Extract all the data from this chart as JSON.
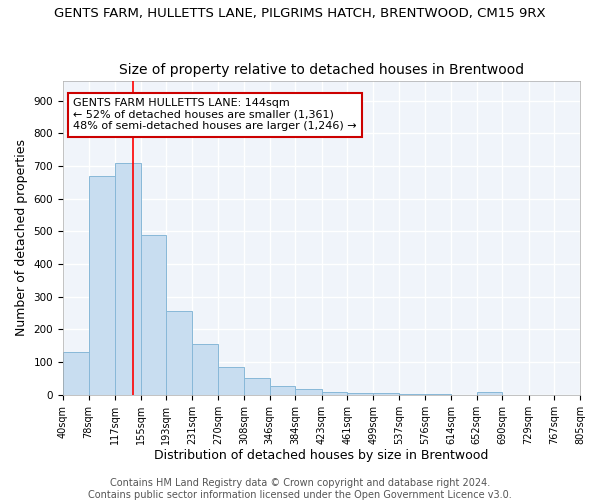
{
  "title1": "GENTS FARM, HULLETTS LANE, PILGRIMS HATCH, BRENTWOOD, CM15 9RX",
  "title2": "Size of property relative to detached houses in Brentwood",
  "xlabel": "Distribution of detached houses by size in Brentwood",
  "ylabel": "Number of detached properties",
  "bin_edges": [
    40,
    78,
    117,
    155,
    193,
    231,
    270,
    308,
    346,
    384,
    423,
    461,
    499,
    537,
    576,
    614,
    652,
    690,
    729,
    767,
    805
  ],
  "bar_heights": [
    130,
    670,
    710,
    490,
    255,
    155,
    85,
    50,
    28,
    18,
    10,
    7,
    5,
    3,
    2,
    1,
    8,
    1,
    0,
    0
  ],
  "bar_color": "#c8ddf0",
  "bar_edge_color": "#88b8d8",
  "red_line_x": 144,
  "annotation_line1": "GENTS FARM HULLETTS LANE: 144sqm",
  "annotation_line2": "← 52% of detached houses are smaller (1,361)",
  "annotation_line3": "48% of semi-detached houses are larger (1,246) →",
  "annotation_box_color": "#ffffff",
  "annotation_box_edge_color": "#cc0000",
  "footer1": "Contains HM Land Registry data © Crown copyright and database right 2024.",
  "footer2": "Contains public sector information licensed under the Open Government Licence v3.0.",
  "ylim": [
    0,
    960
  ],
  "yticks": [
    0,
    100,
    200,
    300,
    400,
    500,
    600,
    700,
    800,
    900
  ],
  "fig_bg_color": "#ffffff",
  "ax_bg_color": "#f0f4fa",
  "grid_color": "#ffffff",
  "title1_fontsize": 9.5,
  "title2_fontsize": 10,
  "axis_label_fontsize": 9,
  "tick_fontsize": 7,
  "footer_fontsize": 7
}
